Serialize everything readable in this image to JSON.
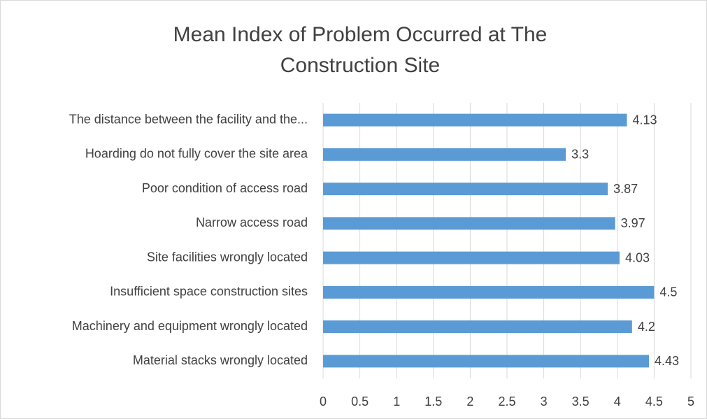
{
  "chart_data": {
    "type": "hbar",
    "title": "Mean Index of Problem Occurred at The Construction Site",
    "categories": [
      "The distance between the facility and the...",
      "Hoarding do not fully cover the site area",
      "Poor condition of access road",
      "Narrow access road",
      "Site facilities wrongly located",
      "Insufficient space construction sites",
      "Machinery and equipment wrongly located",
      "Material stacks wrongly located"
    ],
    "values": [
      4.13,
      3.3,
      3.87,
      3.97,
      4.03,
      4.5,
      4.2,
      4.43
    ],
    "color": "#5b9bd5",
    "xlim": [
      0,
      5
    ],
    "xticks": [
      0,
      0.5,
      1,
      1.5,
      2,
      2.5,
      3,
      3.5,
      4,
      4.5,
      5
    ],
    "grid": true
  }
}
